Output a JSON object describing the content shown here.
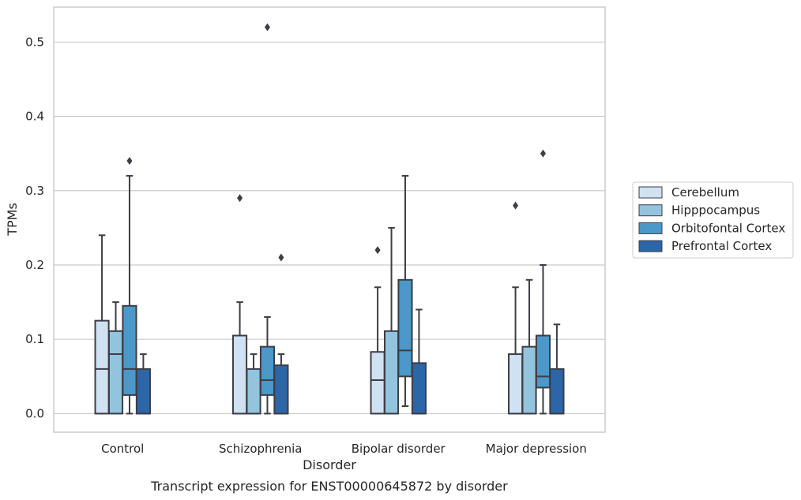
{
  "caption": "Transcript expression for ENST00000645872 by disorder",
  "colors": {
    "grid": "#cccccc",
    "frame": "#cccccc",
    "box_edge": "#3d3d46",
    "series": [
      "#d0e1f2",
      "#93c4de",
      "#4b98c9",
      "#2c66a7"
    ]
  },
  "chart_data": {
    "type": "box",
    "xlabel": "Disorder",
    "ylabel": "TPMs",
    "ylim": [
      -0.025,
      0.547
    ],
    "yticks": [
      0.0,
      0.1,
      0.2,
      0.3,
      0.4,
      0.5
    ],
    "ytick_labels": [
      "0.0",
      "0.1",
      "0.2",
      "0.3",
      "0.4",
      "0.5"
    ],
    "grid": true,
    "legend_position": "right, outside plot area",
    "categories": [
      "Control",
      "Schizophrenia",
      "Bipolar disorder",
      "Major depression"
    ],
    "series": [
      {
        "name": "Cerebellum",
        "boxes": [
          {
            "whisker_low": 0.0,
            "q1": 0.0,
            "median": 0.06,
            "q3": 0.125,
            "whisker_high": 0.24,
            "outliers": []
          },
          {
            "whisker_low": 0.0,
            "q1": 0.0,
            "median": 0.0,
            "q3": 0.105,
            "whisker_high": 0.15,
            "outliers": [
              0.29
            ]
          },
          {
            "whisker_low": 0.0,
            "q1": 0.0,
            "median": 0.045,
            "q3": 0.083,
            "whisker_high": 0.17,
            "outliers": [
              0.22
            ]
          },
          {
            "whisker_low": 0.0,
            "q1": 0.0,
            "median": 0.0,
            "q3": 0.08,
            "whisker_high": 0.17,
            "outliers": [
              0.28
            ]
          }
        ]
      },
      {
        "name": "Hipppocampus",
        "boxes": [
          {
            "whisker_low": 0.0,
            "q1": 0.0,
            "median": 0.08,
            "q3": 0.111,
            "whisker_high": 0.15,
            "outliers": []
          },
          {
            "whisker_low": 0.0,
            "q1": 0.0,
            "median": 0.0,
            "q3": 0.06,
            "whisker_high": 0.08,
            "outliers": []
          },
          {
            "whisker_low": 0.0,
            "q1": 0.0,
            "median": 0.0,
            "q3": 0.111,
            "whisker_high": 0.25,
            "outliers": []
          },
          {
            "whisker_low": 0.0,
            "q1": 0.0,
            "median": 0.0,
            "q3": 0.09,
            "whisker_high": 0.18,
            "outliers": []
          }
        ]
      },
      {
        "name": "Orbitofontal Cortex",
        "boxes": [
          {
            "whisker_low": 0.0,
            "q1": 0.025,
            "median": 0.06,
            "q3": 0.145,
            "whisker_high": 0.32,
            "outliers": [
              0.34
            ]
          },
          {
            "whisker_low": 0.0,
            "q1": 0.025,
            "median": 0.045,
            "q3": 0.09,
            "whisker_high": 0.13,
            "outliers": [
              0.52
            ]
          },
          {
            "whisker_low": 0.01,
            "q1": 0.05,
            "median": 0.085,
            "q3": 0.18,
            "whisker_high": 0.32,
            "outliers": []
          },
          {
            "whisker_low": 0.0,
            "q1": 0.035,
            "median": 0.05,
            "q3": 0.105,
            "whisker_high": 0.2,
            "outliers": [
              0.35
            ]
          }
        ]
      },
      {
        "name": "Prefrontal Cortex",
        "boxes": [
          {
            "whisker_low": 0.0,
            "q1": 0.0,
            "median": 0.0,
            "q3": 0.06,
            "whisker_high": 0.08,
            "outliers": []
          },
          {
            "whisker_low": 0.0,
            "q1": 0.0,
            "median": 0.0,
            "q3": 0.065,
            "whisker_high": 0.08,
            "outliers": [
              0.21
            ]
          },
          {
            "whisker_low": 0.0,
            "q1": 0.0,
            "median": 0.0,
            "q3": 0.068,
            "whisker_high": 0.14,
            "outliers": []
          },
          {
            "whisker_low": 0.0,
            "q1": 0.0,
            "median": 0.0,
            "q3": 0.06,
            "whisker_high": 0.12,
            "outliers": []
          }
        ]
      }
    ]
  }
}
